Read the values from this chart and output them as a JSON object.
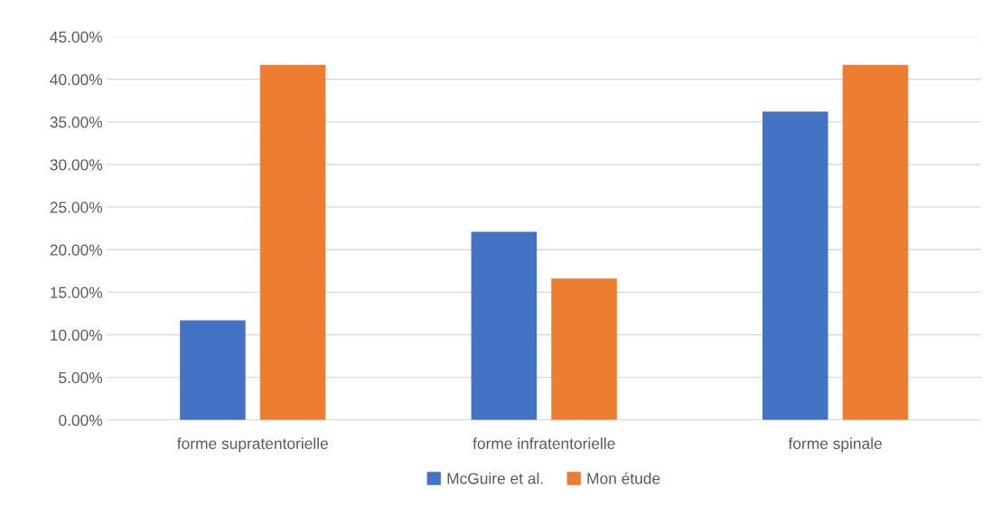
{
  "chart_data": {
    "type": "bar",
    "categories": [
      "forme supratentorielle",
      "forme infratentorielle",
      "forme spinale"
    ],
    "series": [
      {
        "name": "McGuire et al.",
        "color": "#4472c4",
        "values": [
          11.7,
          22.1,
          36.2
        ]
      },
      {
        "name": "Mon étude",
        "color": "#ed7d31",
        "values": [
          41.7,
          16.6,
          41.7
        ]
      }
    ],
    "ylim": [
      0,
      45
    ],
    "yticks": [
      {
        "value": 0,
        "label": "0.00%"
      },
      {
        "value": 5,
        "label": "5.00%"
      },
      {
        "value": 10,
        "label": "10.00%"
      },
      {
        "value": 15,
        "label": "15.00%"
      },
      {
        "value": 20,
        "label": "20.00%"
      },
      {
        "value": 25,
        "label": "25.00%"
      },
      {
        "value": 30,
        "label": "30.00%"
      },
      {
        "value": 35,
        "label": "35.00%"
      },
      {
        "value": 40,
        "label": "40.00%"
      },
      {
        "value": 45,
        "label": "45.00%"
      }
    ],
    "grid": "y",
    "legend": "bottom"
  }
}
